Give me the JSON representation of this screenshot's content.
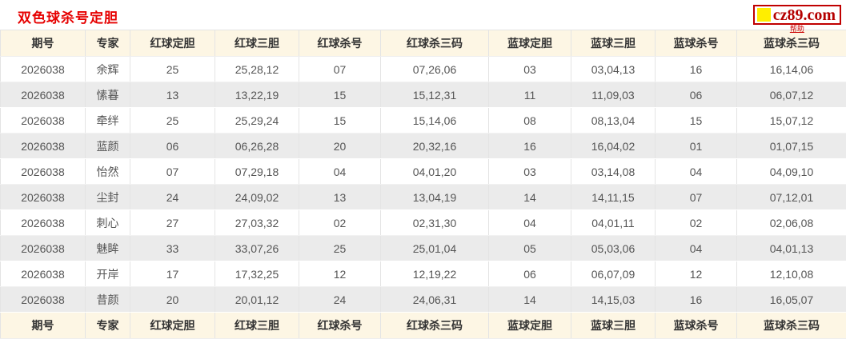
{
  "page": {
    "title": "双色球杀号定胆",
    "logo": {
      "text": "cz89.com",
      "help_label": "帮助"
    },
    "colors": {
      "title_red": "#e60000",
      "logo_red": "#b50000",
      "logo_yellow": "#ffee00",
      "header_bg": "#fdf6e4",
      "zebra_gray": "#ebebeb",
      "cell_text": "#555555"
    }
  },
  "table": {
    "headers": [
      "期号",
      "专家",
      "红球定胆",
      "红球三胆",
      "红球杀号",
      "红球杀三码",
      "蓝球定胆",
      "蓝球三胆",
      "蓝球杀号",
      "蓝球杀三码"
    ],
    "rows": [
      [
        "2026038",
        "余辉",
        "25",
        "25,28,12",
        "07",
        "07,26,06",
        "03",
        "03,04,13",
        "16",
        "16,14,06"
      ],
      [
        "2026038",
        "愫暮",
        "13",
        "13,22,19",
        "15",
        "15,12,31",
        "11",
        "11,09,03",
        "06",
        "06,07,12"
      ],
      [
        "2026038",
        "牵绊",
        "25",
        "25,29,24",
        "15",
        "15,14,06",
        "08",
        "08,13,04",
        "15",
        "15,07,12"
      ],
      [
        "2026038",
        "蓝颜",
        "06",
        "06,26,28",
        "20",
        "20,32,16",
        "16",
        "16,04,02",
        "01",
        "01,07,15"
      ],
      [
        "2026038",
        "怡然",
        "07",
        "07,29,18",
        "04",
        "04,01,20",
        "03",
        "03,14,08",
        "04",
        "04,09,10"
      ],
      [
        "2026038",
        "尘封",
        "24",
        "24,09,02",
        "13",
        "13,04,19",
        "14",
        "14,11,15",
        "07",
        "07,12,01"
      ],
      [
        "2026038",
        "刺心",
        "27",
        "27,03,32",
        "02",
        "02,31,30",
        "04",
        "04,01,11",
        "02",
        "02,06,08"
      ],
      [
        "2026038",
        "魅眸",
        "33",
        "33,07,26",
        "25",
        "25,01,04",
        "05",
        "05,03,06",
        "04",
        "04,01,13"
      ],
      [
        "2026038",
        "开岸",
        "17",
        "17,32,25",
        "12",
        "12,19,22",
        "06",
        "06,07,09",
        "12",
        "12,10,08"
      ],
      [
        "2026038",
        "昔颜",
        "20",
        "20,01,12",
        "24",
        "24,06,31",
        "14",
        "14,15,03",
        "16",
        "16,05,07"
      ]
    ],
    "footer": [
      "期号",
      "专家",
      "红球定胆",
      "红球三胆",
      "红球杀号",
      "红球杀三码",
      "蓝球定胆",
      "蓝球三胆",
      "蓝球杀号",
      "蓝球杀三码"
    ]
  }
}
